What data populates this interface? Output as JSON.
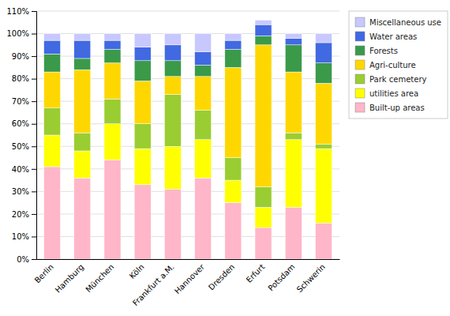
{
  "chart_data": {
    "type": "bar",
    "stacked": true,
    "categories": [
      "Berlin",
      "Hamburg",
      "München",
      "Köln",
      "Frankfurt a.M.",
      "Hannover",
      "Dresden",
      "Erfurt",
      "Potsdam",
      "Schwerin"
    ],
    "series": [
      {
        "name": "Built-up areas",
        "color": "#FFB6C8",
        "values": [
          41,
          36,
          44,
          33,
          31,
          36,
          25,
          14,
          23,
          16
        ]
      },
      {
        "name": "utilities area",
        "color": "#FFFF00",
        "values": [
          14,
          12,
          16,
          16,
          19,
          17,
          10,
          9,
          30,
          33
        ]
      },
      {
        "name": "Park cemetery",
        "color": "#9ACD32",
        "values": [
          12,
          8,
          11,
          11,
          23,
          13,
          10,
          9,
          3,
          2
        ]
      },
      {
        "name": "Agri-culture",
        "color": "#FFD700",
        "values": [
          16,
          28,
          16,
          19,
          8,
          15,
          40,
          63,
          27,
          27
        ]
      },
      {
        "name": "Forests",
        "color": "#3A9A4A",
        "values": [
          8,
          5,
          6,
          9,
          7,
          5,
          8,
          4,
          12,
          9
        ]
      },
      {
        "name": "Water areas",
        "color": "#4169E1",
        "values": [
          6,
          8,
          4,
          6,
          7,
          6,
          4,
          5,
          3,
          9
        ]
      },
      {
        "name": "Miscellaneous use",
        "color": "#C8C8FF",
        "values": [
          3,
          3,
          3,
          6,
          5,
          8,
          3,
          2,
          2,
          4
        ]
      }
    ],
    "ylim": [
      0,
      110
    ],
    "yticks": [
      {
        "value": 0,
        "label": "0%"
      },
      {
        "value": 10,
        "label": "10%"
      },
      {
        "value": 20,
        "label": "20%"
      },
      {
        "value": 30,
        "label": "30%"
      },
      {
        "value": 40,
        "label": "40%"
      },
      {
        "value": 50,
        "label": "50%"
      },
      {
        "value": 60,
        "label": "60%"
      },
      {
        "value": 70,
        "label": "70%"
      },
      {
        "value": 80,
        "label": "80%"
      },
      {
        "value": 90,
        "label": "90%"
      },
      {
        "value": 100,
        "label": "100%"
      },
      {
        "value": 110,
        "label": "110%"
      }
    ],
    "grid": true,
    "legend": "right"
  }
}
